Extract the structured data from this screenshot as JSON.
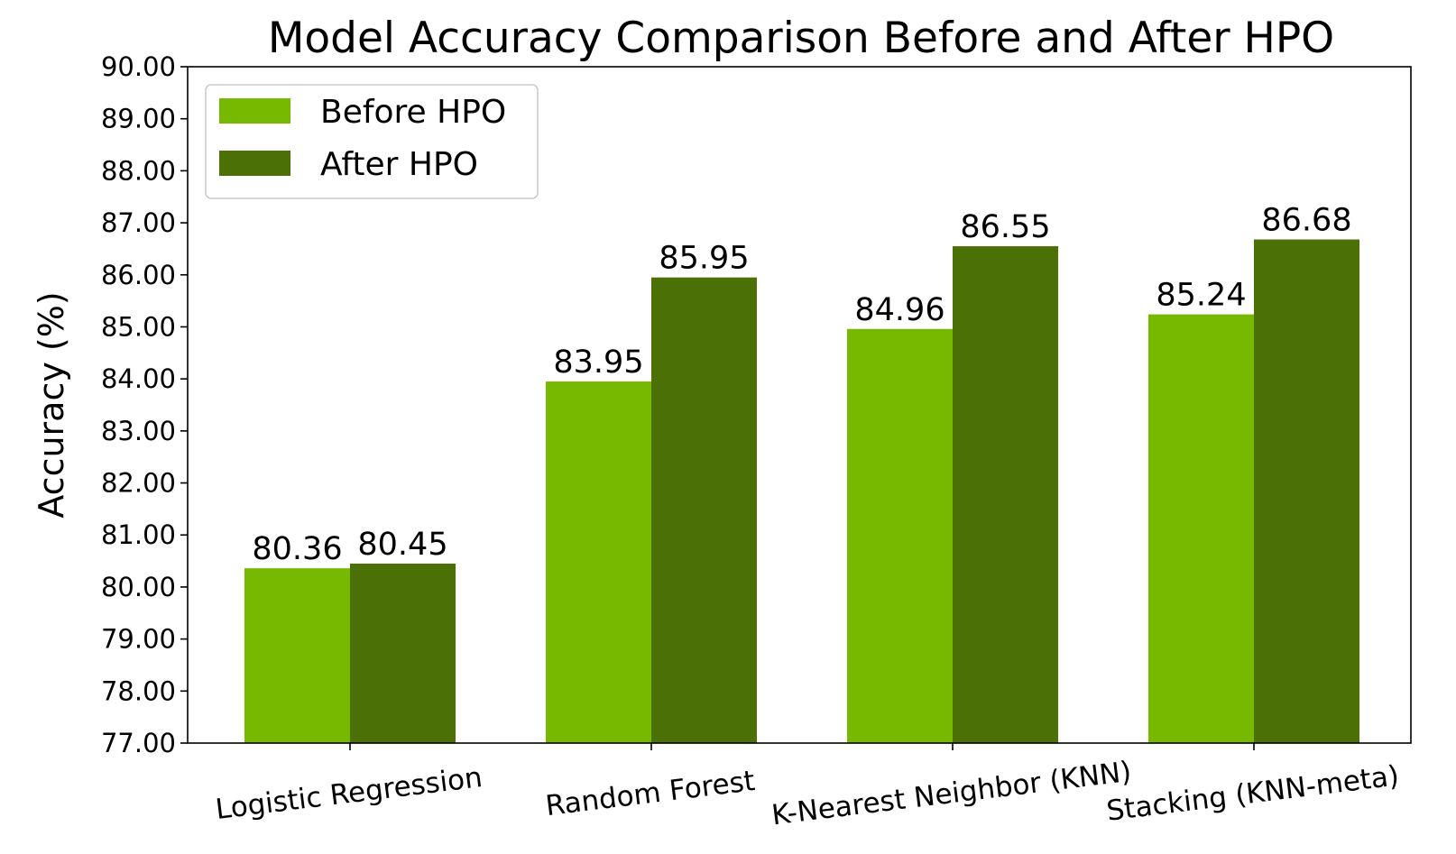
{
  "chart_data": {
    "type": "bar",
    "title": "Model Accuracy Comparison Before and After HPO",
    "xlabel": "",
    "ylabel": "Accuracy (%)",
    "categories": [
      "Logistic Regression",
      "Random Forest",
      "K-Nearest Neighbor (KNN)",
      "Stacking (KNN-meta)"
    ],
    "series": [
      {
        "name": "Before HPO",
        "values": [
          80.36,
          83.95,
          84.96,
          85.24
        ],
        "color": "#76b900"
      },
      {
        "name": "After HPO",
        "values": [
          80.45,
          85.95,
          86.55,
          86.68
        ],
        "color": "#4a7006"
      }
    ],
    "data_labels": [
      [
        "80.36",
        "83.95",
        "84.96",
        "85.24"
      ],
      [
        "80.45",
        "85.95",
        "86.55",
        "86.68"
      ]
    ],
    "ylim": [
      77,
      90
    ],
    "yticks": [
      "77.00",
      "78.00",
      "79.00",
      "80.00",
      "81.00",
      "82.00",
      "83.00",
      "84.00",
      "85.00",
      "86.00",
      "87.00",
      "88.00",
      "89.00",
      "90.00"
    ],
    "grid": false,
    "legend_position": "top-left",
    "x_tick_rotation": "slight counter-clockwise"
  }
}
